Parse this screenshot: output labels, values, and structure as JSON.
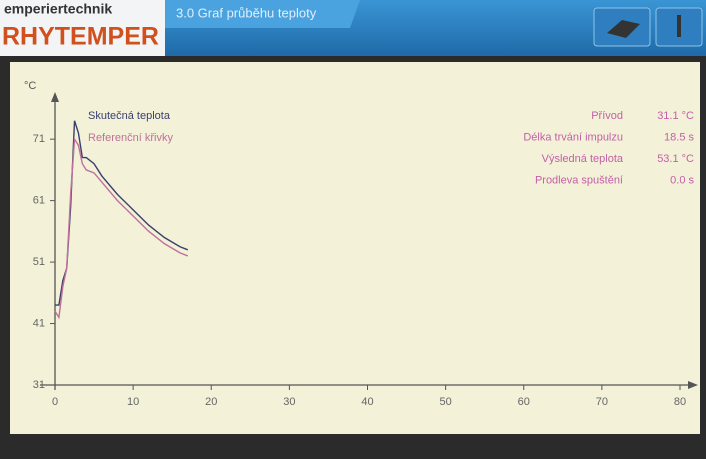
{
  "header": {
    "brand_top": "emperiertechnik",
    "brand": "RHYTEMPER",
    "tab": "3.0 Graf průběhu teploty"
  },
  "info": [
    {
      "label": "Přívod",
      "value": "31.1 °C"
    },
    {
      "label": "Délka trvání impulzu",
      "value": "18.5 s"
    },
    {
      "label": "Výsledná teplota",
      "value": "53.1 °C"
    },
    {
      "label": "Prodleva spuštění",
      "value": "0.0 s"
    }
  ],
  "chart_data": {
    "type": "line",
    "y_label": "°C",
    "x": [
      0,
      0.5,
      1,
      1.5,
      2,
      2.5,
      3,
      3.5,
      4,
      5,
      6,
      8,
      10,
      12,
      14,
      16,
      17
    ],
    "series": [
      {
        "name": "Skutečná teplota",
        "color": "#3a3f6e",
        "values": [
          44,
          44,
          48,
          50,
          60,
          74,
          72,
          68,
          68,
          67,
          65,
          62,
          59.5,
          57,
          55,
          53.5,
          53
        ]
      },
      {
        "name": "Referenční křivky",
        "color": "#c0709a",
        "values": [
          43,
          42,
          47,
          50,
          62,
          71,
          70,
          67,
          66,
          65.5,
          64,
          61,
          58.5,
          56,
          54,
          52.5,
          52
        ]
      }
    ],
    "xlim": [
      0,
      80
    ],
    "xticks": [
      0,
      10,
      20,
      30,
      40,
      50,
      60,
      70,
      80
    ],
    "ylim": [
      31,
      79
    ],
    "yticks": [
      31,
      41,
      51,
      61,
      71
    ]
  }
}
